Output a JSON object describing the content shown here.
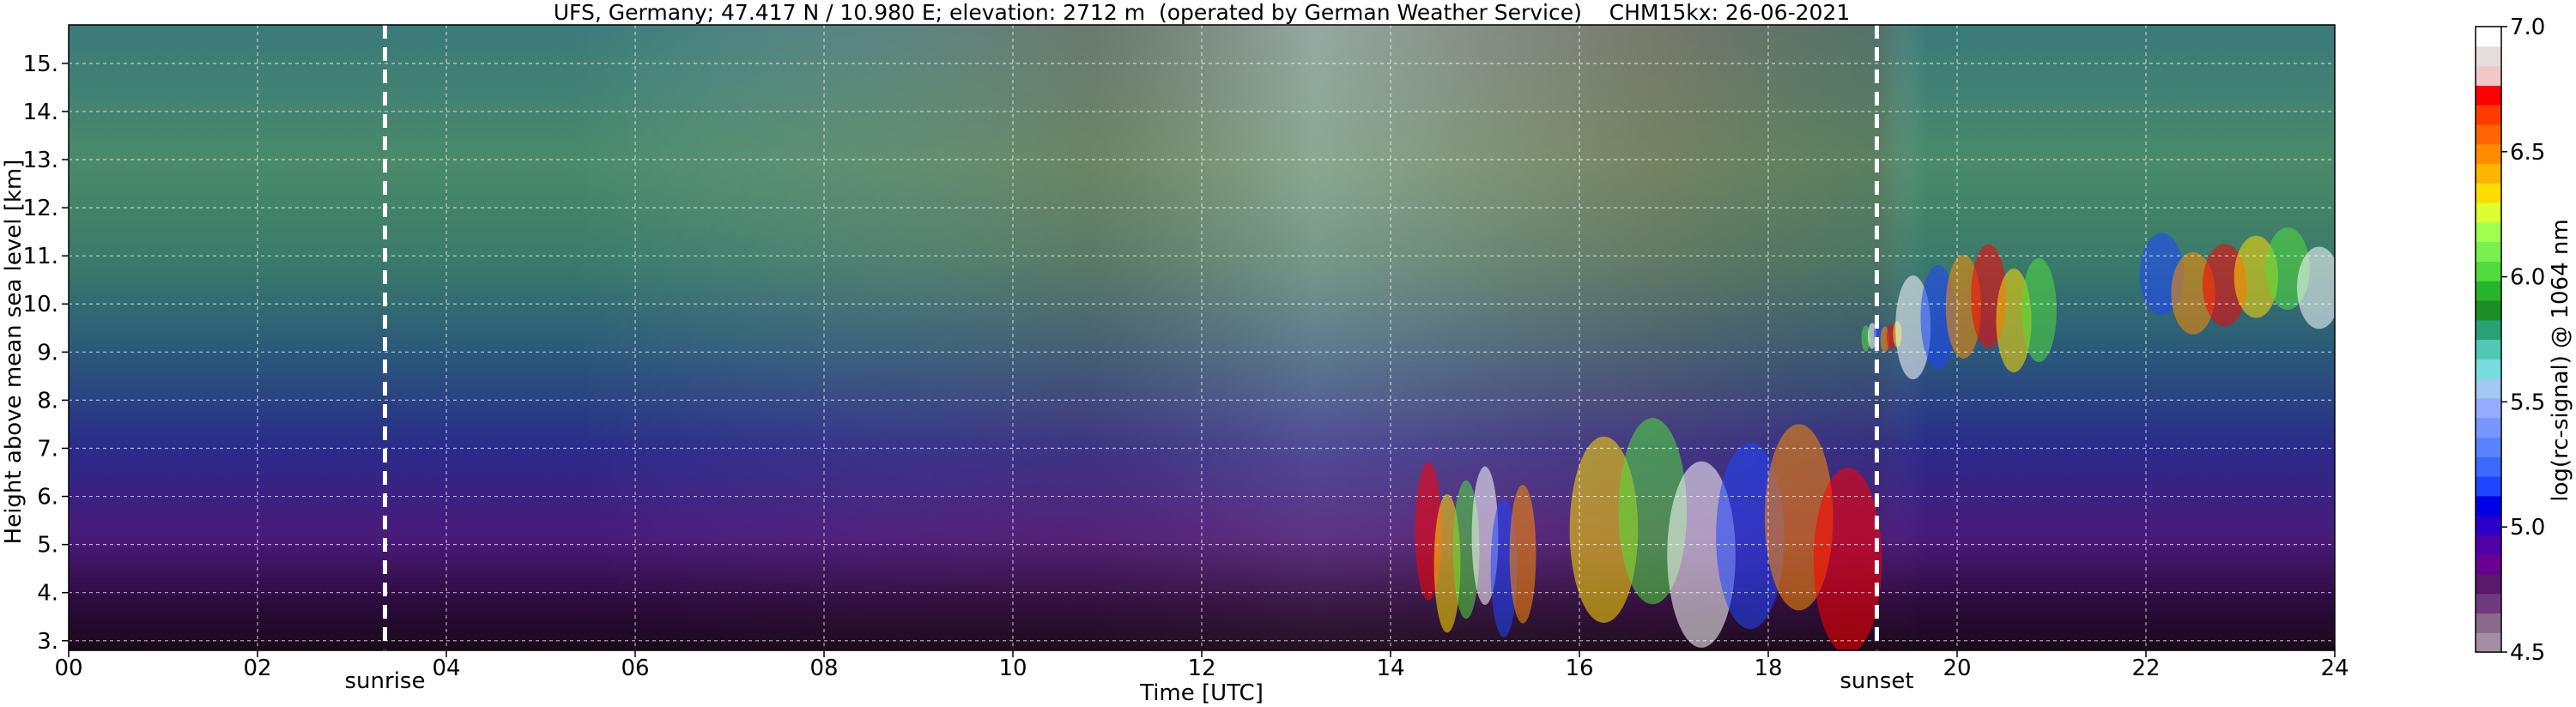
{
  "chart_data": {
    "type": "heatmap",
    "title": "UFS, Germany; 47.417 N / 10.980 E; elevation: 2712 m  (operated by German Weather Service)    CHM15kx: 26-06-2021",
    "xlabel": "Time [UTC]",
    "ylabel": "Height above mean sea level [km]",
    "xlim": [
      0,
      24
    ],
    "ylim": [
      2.8,
      15.8
    ],
    "x_ticks": [
      {
        "value": 0,
        "label": "00"
      },
      {
        "value": 2,
        "label": "02"
      },
      {
        "value": 4,
        "label": "04"
      },
      {
        "value": 6,
        "label": "06"
      },
      {
        "value": 8,
        "label": "08"
      },
      {
        "value": 10,
        "label": "10"
      },
      {
        "value": 12,
        "label": "12"
      },
      {
        "value": 14,
        "label": "14"
      },
      {
        "value": 16,
        "label": "16"
      },
      {
        "value": 18,
        "label": "18"
      },
      {
        "value": 20,
        "label": "20"
      },
      {
        "value": 22,
        "label": "22"
      },
      {
        "value": 24,
        "label": "24"
      }
    ],
    "y_ticks": [
      {
        "value": 3,
        "label": "3."
      },
      {
        "value": 4,
        "label": "4."
      },
      {
        "value": 5,
        "label": "5."
      },
      {
        "value": 6,
        "label": "6."
      },
      {
        "value": 7,
        "label": "7."
      },
      {
        "value": 8,
        "label": "8."
      },
      {
        "value": 9,
        "label": "9."
      },
      {
        "value": 10,
        "label": "10."
      },
      {
        "value": 11,
        "label": "11."
      },
      {
        "value": 12,
        "label": "12."
      },
      {
        "value": 13,
        "label": "13."
      },
      {
        "value": 14,
        "label": "14."
      },
      {
        "value": 15,
        "label": "15."
      }
    ],
    "grid": true,
    "markers": [
      {
        "label": "sunrise",
        "time": 3.35
      },
      {
        "label": "sunset",
        "time": 19.15
      }
    ],
    "colorbar": {
      "label": "log(rc-signal) @ 1064 nm",
      "range": [
        4.5,
        7.0
      ],
      "ticks": [
        {
          "value": 7.0,
          "label": "7.0"
        },
        {
          "value": 6.5,
          "label": "6.5"
        },
        {
          "value": 6.0,
          "label": "6.0"
        },
        {
          "value": 5.5,
          "label": "5.5"
        },
        {
          "value": 5.0,
          "label": "5.0"
        },
        {
          "value": 4.5,
          "label": "4.5"
        }
      ],
      "colors": [
        "#a48ea4",
        "#8a6a8a",
        "#6e3a7e",
        "#5a1a6a",
        "#6a0090",
        "#5000a8",
        "#2a00c8",
        "#0000e8",
        "#1e46ff",
        "#3c6aff",
        "#5a82ff",
        "#7896ff",
        "#96aaff",
        "#a0c8f0",
        "#78dcdc",
        "#50c8b4",
        "#28a078",
        "#1e8c28",
        "#28b428",
        "#50dc3c",
        "#78f050",
        "#a0ff50",
        "#dcff32",
        "#ffdc00",
        "#ffb400",
        "#ff8c00",
        "#ff6400",
        "#ff3c00",
        "#ff0000",
        "#f0c8c8",
        "#e6dcdc",
        "#ffffff"
      ]
    },
    "features": [
      {
        "label": "cloud",
        "t_start": 14.3,
        "t_end": 15.5,
        "h_bottom": 3.2,
        "h_top": 6.4
      },
      {
        "label": "cloud",
        "t_start": 16.0,
        "t_end": 19.1,
        "h_bottom": 2.9,
        "h_top": 7.2
      },
      {
        "label": "cloud",
        "t_start": 19.0,
        "t_end": 19.4,
        "h_bottom": 9.0,
        "h_top": 9.6
      },
      {
        "label": "cloud",
        "t_start": 19.4,
        "t_end": 21.0,
        "h_bottom": 8.6,
        "h_top": 11.0
      },
      {
        "label": "cloud",
        "t_start": 22.0,
        "t_end": 24.0,
        "h_bottom": 9.5,
        "h_top": 11.4
      }
    ]
  }
}
